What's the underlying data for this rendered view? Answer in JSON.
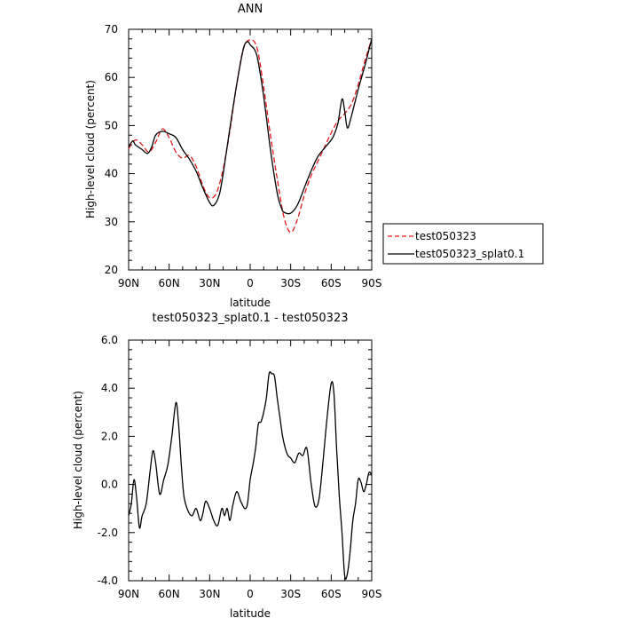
{
  "chart_data": [
    {
      "type": "line",
      "title": "ANN",
      "xlabel": "latitude",
      "ylabel": "High-level cloud (percent)",
      "xlim": [
        90,
        -90
      ],
      "ylim": [
        20,
        70
      ],
      "x_ticks": [
        90,
        60,
        30,
        0,
        -30,
        -60,
        -90
      ],
      "x_tick_labels": [
        "90N",
        "60N",
        "30N",
        "0",
        "30S",
        "60S",
        "90S"
      ],
      "y_ticks": [
        20,
        30,
        40,
        50,
        60,
        70
      ],
      "y_tick_labels": [
        "20",
        "30",
        "40",
        "50",
        "60",
        "70"
      ],
      "legend_position": "right-outside",
      "series": [
        {
          "name": "test050323",
          "color": "#e31a1c",
          "dash": "dashed",
          "x": [
            90,
            85,
            80,
            75,
            70,
            65,
            60,
            55,
            50,
            45,
            40,
            35,
            30,
            25,
            20,
            15,
            10,
            5,
            0,
            -5,
            -10,
            -15,
            -20,
            -25,
            -30,
            -35,
            -40,
            -45,
            -50,
            -55,
            -60,
            -65,
            -70,
            -75,
            -80,
            -85,
            -90
          ],
          "y": [
            45.2,
            47,
            46,
            44.5,
            46.5,
            49.3,
            47.5,
            44.5,
            43.2,
            43.8,
            41.5,
            37.5,
            35,
            36,
            41,
            49,
            58.5,
            66,
            67.8,
            66.2,
            58,
            48,
            39,
            31,
            27.8,
            30.5,
            35.5,
            39.5,
            42.5,
            45.5,
            48.5,
            51,
            52.5,
            54.5,
            58.5,
            63.5,
            68
          ]
        },
        {
          "name": "test050323_splat0.1",
          "color": "#000000",
          "dash": "solid",
          "x": [
            90,
            87,
            85,
            80,
            76,
            73,
            70,
            65,
            60,
            55,
            50,
            45,
            40,
            35,
            30,
            27,
            23,
            20,
            15,
            10,
            5,
            2,
            0,
            -5,
            -10,
            -15,
            -20,
            -23,
            -25,
            -30,
            -35,
            -40,
            -45,
            -50,
            -55,
            -60,
            -62,
            -65,
            -68,
            -70,
            -72,
            -75,
            -80,
            -85,
            -90
          ],
          "y": [
            45.5,
            46.8,
            46,
            45,
            44.2,
            45.5,
            48,
            48.8,
            48.3,
            47.5,
            45,
            43,
            40.5,
            37,
            34,
            33.4,
            35.5,
            40,
            49.5,
            58.5,
            66,
            67.4,
            66.8,
            64.5,
            56,
            45,
            36,
            33,
            32,
            31.8,
            33.5,
            37,
            40.5,
            43.5,
            45.3,
            47,
            48,
            50.5,
            55.5,
            53,
            49.5,
            52,
            57.5,
            62.5,
            68
          ]
        }
      ]
    },
    {
      "type": "line",
      "title": "test050323_splat0.1 - test050323",
      "xlabel": "latitude",
      "ylabel": "High-level cloud (percent)",
      "xlim": [
        90,
        -90
      ],
      "ylim": [
        -4,
        6
      ],
      "x_ticks": [
        90,
        60,
        30,
        0,
        -30,
        -60,
        -90
      ],
      "x_tick_labels": [
        "90N",
        "60N",
        "30N",
        "0",
        "30S",
        "60S",
        "90S"
      ],
      "y_ticks": [
        -4,
        -2,
        0,
        2,
        4,
        6
      ],
      "y_tick_labels": [
        "-4.0",
        "-2.0",
        "0.0",
        "2.0",
        "4.0",
        "6.0"
      ],
      "series": [
        {
          "name": "",
          "color": "#000000",
          "dash": "solid",
          "x": [
            90,
            88,
            86,
            84,
            82,
            80,
            77,
            74,
            72,
            70,
            67,
            64,
            61,
            58,
            55,
            53,
            51,
            49,
            46,
            43,
            40,
            37,
            35,
            33,
            30,
            27,
            24,
            21,
            19,
            17,
            15,
            13,
            10,
            7,
            4,
            2,
            0,
            -2,
            -4,
            -6,
            -8,
            -10,
            -12,
            -14,
            -16,
            -18,
            -20,
            -22,
            -24,
            -26,
            -28,
            -30,
            -33,
            -36,
            -39,
            -42,
            -45,
            -48,
            -51,
            -54,
            -57,
            -60,
            -62,
            -64,
            -66,
            -68,
            -70,
            -72,
            -74,
            -76,
            -78,
            -80,
            -82,
            -84,
            -86,
            -88,
            -90
          ],
          "y": [
            -1.3,
            -0.8,
            0.2,
            -0.6,
            -1.8,
            -1.3,
            -0.8,
            0.6,
            1.4,
            0.9,
            -0.4,
            0.2,
            0.8,
            2.0,
            3.4,
            2.5,
            0.8,
            -0.5,
            -1.1,
            -1.3,
            -1.0,
            -1.5,
            -1.2,
            -0.7,
            -1.0,
            -1.5,
            -1.7,
            -1.0,
            -1.3,
            -1.0,
            -1.5,
            -0.9,
            -0.3,
            -0.7,
            -1.0,
            -0.8,
            0.2,
            0.8,
            1.5,
            2.5,
            2.6,
            3.0,
            3.6,
            4.6,
            4.6,
            4.5,
            3.6,
            2.8,
            2.0,
            1.5,
            1.2,
            1.1,
            0.9,
            1.3,
            1.2,
            1.5,
            0.1,
            -0.9,
            -0.6,
            1.0,
            2.8,
            4.2,
            3.8,
            1.5,
            -0.5,
            -2.0,
            -3.8,
            -3.7,
            -2.8,
            -1.5,
            -0.8,
            0.2,
            0.1,
            -0.3,
            0.0,
            0.5,
            0.4
          ]
        }
      ]
    }
  ]
}
